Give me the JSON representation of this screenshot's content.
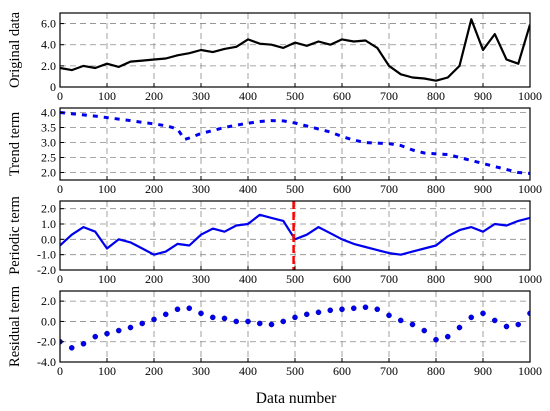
{
  "chart_data": [
    {
      "type": "line",
      "ylabel": "Original data",
      "xlim": [
        0,
        1000
      ],
      "ylim": [
        0,
        7.0
      ],
      "x_ticks": [
        0,
        100,
        200,
        300,
        400,
        500,
        600,
        700,
        800,
        900,
        1000
      ],
      "y_ticks": [
        0,
        2.0,
        4.0,
        6.0
      ],
      "y_tick_labels": [
        "0",
        "2.0",
        "4.0",
        "6.0"
      ],
      "grid": true,
      "series": [
        {
          "color": "#000000",
          "style": "solid",
          "x": [
            0,
            25,
            50,
            75,
            100,
            125,
            150,
            175,
            200,
            225,
            250,
            275,
            300,
            325,
            350,
            375,
            400,
            425,
            450,
            475,
            500,
            525,
            550,
            575,
            600,
            625,
            650,
            675,
            700,
            725,
            750,
            775,
            800,
            825,
            850,
            875,
            900,
            925,
            950,
            975,
            1000
          ],
          "values": [
            1.8,
            1.6,
            2.0,
            1.8,
            2.2,
            1.9,
            2.4,
            2.5,
            2.6,
            2.7,
            3.0,
            3.2,
            3.5,
            3.3,
            3.6,
            3.8,
            4.5,
            4.1,
            4.0,
            3.7,
            4.2,
            3.9,
            4.3,
            4.0,
            4.5,
            4.3,
            4.4,
            3.7,
            2.0,
            1.2,
            0.9,
            0.8,
            0.6,
            0.9,
            2.0,
            6.4,
            3.5,
            5.0,
            2.6,
            2.2,
            5.9
          ]
        }
      ]
    },
    {
      "type": "line",
      "ylabel": "Trend term",
      "xlim": [
        0,
        1000
      ],
      "ylim": [
        1.75,
        4.15
      ],
      "x_ticks": [
        0,
        100,
        200,
        300,
        400,
        500,
        600,
        700,
        800,
        900,
        1000
      ],
      "y_ticks": [
        2.0,
        2.5,
        3.0,
        3.5,
        4.0
      ],
      "y_tick_labels": [
        "2.0",
        "2.5",
        "3.0",
        "3.5",
        "4.0"
      ],
      "grid": true,
      "series": [
        {
          "color": "#0000ee",
          "style": "dashed",
          "x": [
            0,
            25,
            50,
            75,
            100,
            125,
            150,
            175,
            200,
            225,
            250,
            265,
            275,
            300,
            325,
            350,
            375,
            400,
            425,
            450,
            475,
            500,
            525,
            550,
            575,
            600,
            625,
            650,
            675,
            700,
            725,
            750,
            775,
            800,
            825,
            850,
            875,
            900,
            925,
            950,
            975,
            1000
          ],
          "values": [
            4.0,
            3.96,
            3.92,
            3.88,
            3.83,
            3.78,
            3.73,
            3.67,
            3.62,
            3.56,
            3.45,
            3.1,
            3.15,
            3.3,
            3.4,
            3.5,
            3.58,
            3.64,
            3.7,
            3.73,
            3.72,
            3.65,
            3.55,
            3.45,
            3.35,
            3.2,
            3.08,
            3.0,
            2.98,
            2.96,
            2.9,
            2.75,
            2.65,
            2.62,
            2.6,
            2.5,
            2.4,
            2.3,
            2.2,
            2.1,
            2.0,
            1.97
          ]
        }
      ]
    },
    {
      "type": "line",
      "ylabel": "Periodic term",
      "xlim": [
        0,
        1000
      ],
      "ylim": [
        -2.0,
        2.5
      ],
      "x_ticks": [
        0,
        100,
        200,
        300,
        400,
        500,
        600,
        700,
        800,
        900,
        1000
      ],
      "y_ticks": [
        -2.0,
        -1.0,
        0.0,
        1.0,
        2.0
      ],
      "y_tick_labels": [
        "-2.0",
        "-1.0",
        "0.0",
        "1.0",
        "2.0"
      ],
      "grid": true,
      "vline": {
        "x": 497,
        "color": "#ff0000"
      },
      "series": [
        {
          "color": "#0000ee",
          "style": "solid",
          "x": [
            0,
            25,
            50,
            75,
            100,
            125,
            150,
            175,
            200,
            225,
            250,
            275,
            300,
            325,
            350,
            375,
            400,
            425,
            450,
            475,
            500,
            525,
            550,
            575,
            600,
            625,
            650,
            675,
            700,
            725,
            750,
            775,
            800,
            825,
            850,
            875,
            900,
            925,
            950,
            975,
            1000
          ],
          "values": [
            -0.4,
            0.3,
            0.8,
            0.5,
            -0.6,
            0.0,
            -0.2,
            -0.6,
            -1.0,
            -0.8,
            -0.3,
            -0.4,
            0.3,
            0.7,
            0.5,
            0.9,
            1.0,
            1.6,
            1.4,
            1.2,
            0.0,
            0.3,
            0.8,
            0.4,
            0.0,
            -0.3,
            -0.5,
            -0.7,
            -0.9,
            -1.0,
            -0.8,
            -0.6,
            -0.4,
            0.2,
            0.6,
            0.8,
            0.5,
            1.0,
            0.9,
            1.2,
            1.4
          ]
        }
      ]
    },
    {
      "type": "scatter",
      "ylabel": "Residual term",
      "xlabel": "Data number",
      "xlim": [
        0,
        1000
      ],
      "ylim": [
        -4.0,
        3.0
      ],
      "x_ticks": [
        0,
        100,
        200,
        300,
        400,
        500,
        600,
        700,
        800,
        900,
        1000
      ],
      "x_tick_labels": [
        "0",
        "100",
        "200",
        "300",
        "400",
        "500",
        "600",
        "700",
        "800",
        "900",
        "1000"
      ],
      "y_ticks": [
        -4.0,
        -2.0,
        0.0,
        2.0
      ],
      "y_tick_labels": [
        "-4.0",
        "-2.0",
        "0.0",
        "2.0"
      ],
      "grid": true,
      "series": [
        {
          "color": "#0000ee",
          "marker": "circle",
          "x": [
            0,
            25,
            50,
            75,
            100,
            125,
            150,
            175,
            200,
            225,
            250,
            275,
            300,
            325,
            350,
            375,
            400,
            425,
            450,
            475,
            500,
            525,
            550,
            575,
            600,
            625,
            650,
            675,
            700,
            725,
            750,
            775,
            800,
            825,
            850,
            875,
            900,
            925,
            950,
            975,
            1000
          ],
          "values": [
            -2.0,
            -2.6,
            -2.2,
            -1.5,
            -1.2,
            -0.9,
            -0.6,
            -0.2,
            0.2,
            0.7,
            1.2,
            1.3,
            0.8,
            0.4,
            0.3,
            0.0,
            0.0,
            -0.2,
            -0.3,
            0.0,
            0.4,
            0.7,
            0.9,
            1.1,
            1.2,
            1.3,
            1.4,
            1.2,
            0.6,
            0.1,
            -0.3,
            -0.9,
            -1.8,
            -1.5,
            -0.6,
            0.4,
            0.8,
            0.1,
            -0.5,
            -0.3,
            0.8
          ]
        }
      ]
    }
  ]
}
